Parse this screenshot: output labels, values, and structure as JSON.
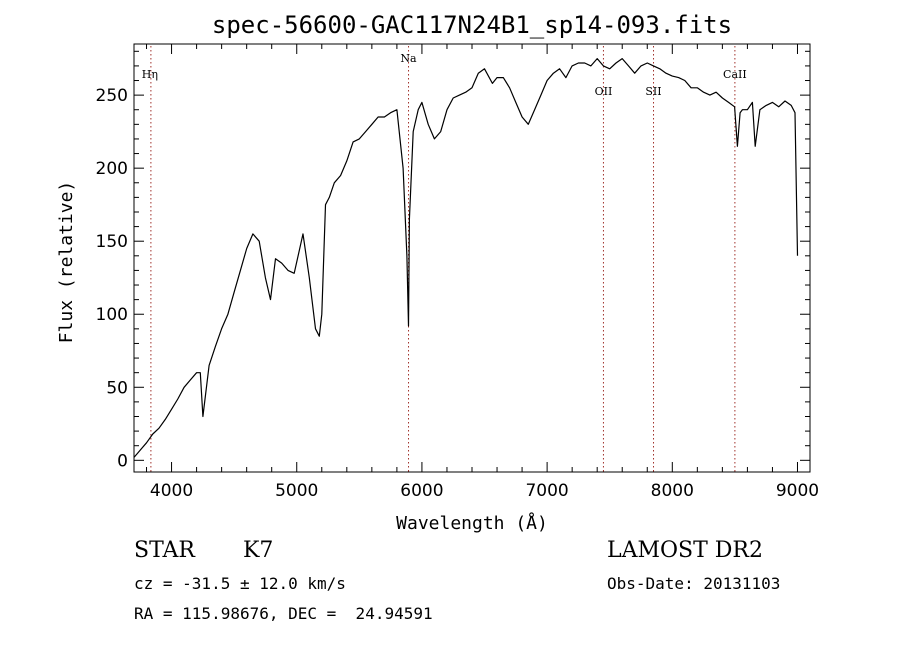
{
  "chart_data": {
    "type": "line",
    "title": "spec-56600-GAC117N24B1_sp14-093.fits",
    "xlabel": "Wavelength (Å)",
    "ylabel": "Flux (relative)",
    "xlim": [
      3700,
      9100
    ],
    "ylim": [
      -8,
      285
    ],
    "xticks": [
      4000,
      5000,
      6000,
      7000,
      8000,
      9000
    ],
    "yticks": [
      0,
      50,
      100,
      150,
      200,
      250
    ],
    "grid": false,
    "series": [
      {
        "x": [
          3700,
          3730,
          3760,
          3800,
          3850,
          3900,
          3950,
          4000,
          4050,
          4100,
          4150,
          4200,
          4230,
          4250,
          4300,
          4350,
          4400,
          4450,
          4500,
          4550,
          4600,
          4650,
          4700,
          4750,
          4790,
          4830,
          4880,
          4930,
          4980,
          5050,
          5100,
          5150,
          5180,
          5200,
          5230,
          5260,
          5300,
          5350,
          5400,
          5450,
          5500,
          5550,
          5600,
          5650,
          5700,
          5750,
          5800,
          5850,
          5880,
          5893,
          5900,
          5930,
          5970,
          6000,
          6050,
          6100,
          6150,
          6200,
          6250,
          6300,
          6350,
          6400,
          6450,
          6500,
          6563,
          6600,
          6650,
          6700,
          6750,
          6800,
          6850,
          6900,
          6950,
          7000,
          7050,
          7100,
          7150,
          7200,
          7250,
          7300,
          7350,
          7400,
          7450,
          7500,
          7550,
          7600,
          7650,
          7700,
          7750,
          7800,
          7850,
          7900,
          7950,
          8000,
          8050,
          8100,
          8150,
          8200,
          8250,
          8300,
          8350,
          8400,
          8450,
          8498,
          8520,
          8542,
          8560,
          8600,
          8640,
          8662,
          8700,
          8750,
          8800,
          8850,
          8900,
          8950,
          8980,
          9000
        ],
        "y": [
          2,
          5,
          8,
          12,
          18,
          22,
          28,
          35,
          42,
          50,
          55,
          60,
          60,
          30,
          65,
          78,
          90,
          100,
          115,
          130,
          145,
          155,
          150,
          125,
          110,
          138,
          135,
          130,
          128,
          155,
          125,
          90,
          85,
          100,
          175,
          180,
          190,
          195,
          205,
          218,
          220,
          225,
          230,
          235,
          235,
          238,
          240,
          200,
          140,
          92,
          165,
          225,
          240,
          245,
          230,
          220,
          225,
          240,
          248,
          250,
          252,
          255,
          265,
          268,
          258,
          262,
          262,
          255,
          245,
          235,
          230,
          240,
          250,
          260,
          265,
          268,
          262,
          270,
          272,
          272,
          270,
          275,
          270,
          268,
          272,
          275,
          270,
          265,
          270,
          272,
          270,
          268,
          265,
          263,
          262,
          260,
          255,
          255,
          252,
          250,
          252,
          248,
          245,
          242,
          215,
          238,
          240,
          240,
          245,
          215,
          240,
          243,
          245,
          242,
          246,
          243,
          238,
          140
        ]
      }
    ],
    "line_markers": [
      {
        "label": "Hη",
        "x": 3835
      },
      {
        "label": "Na",
        "x": 5893
      },
      {
        "label": "OII",
        "x": 7450
      },
      {
        "label": "SII",
        "x": 7850
      },
      {
        "label": "CaII",
        "x": 8500
      }
    ]
  },
  "info": {
    "object_class": "STAR",
    "subclass": "K7",
    "redshift": "cz = -31.5 ± 12.0 km/s",
    "coords": "RA = 115.98676, DEC =  24.94591",
    "survey": "LAMOST DR2",
    "obs_date": "Obs-Date: 20131103"
  }
}
